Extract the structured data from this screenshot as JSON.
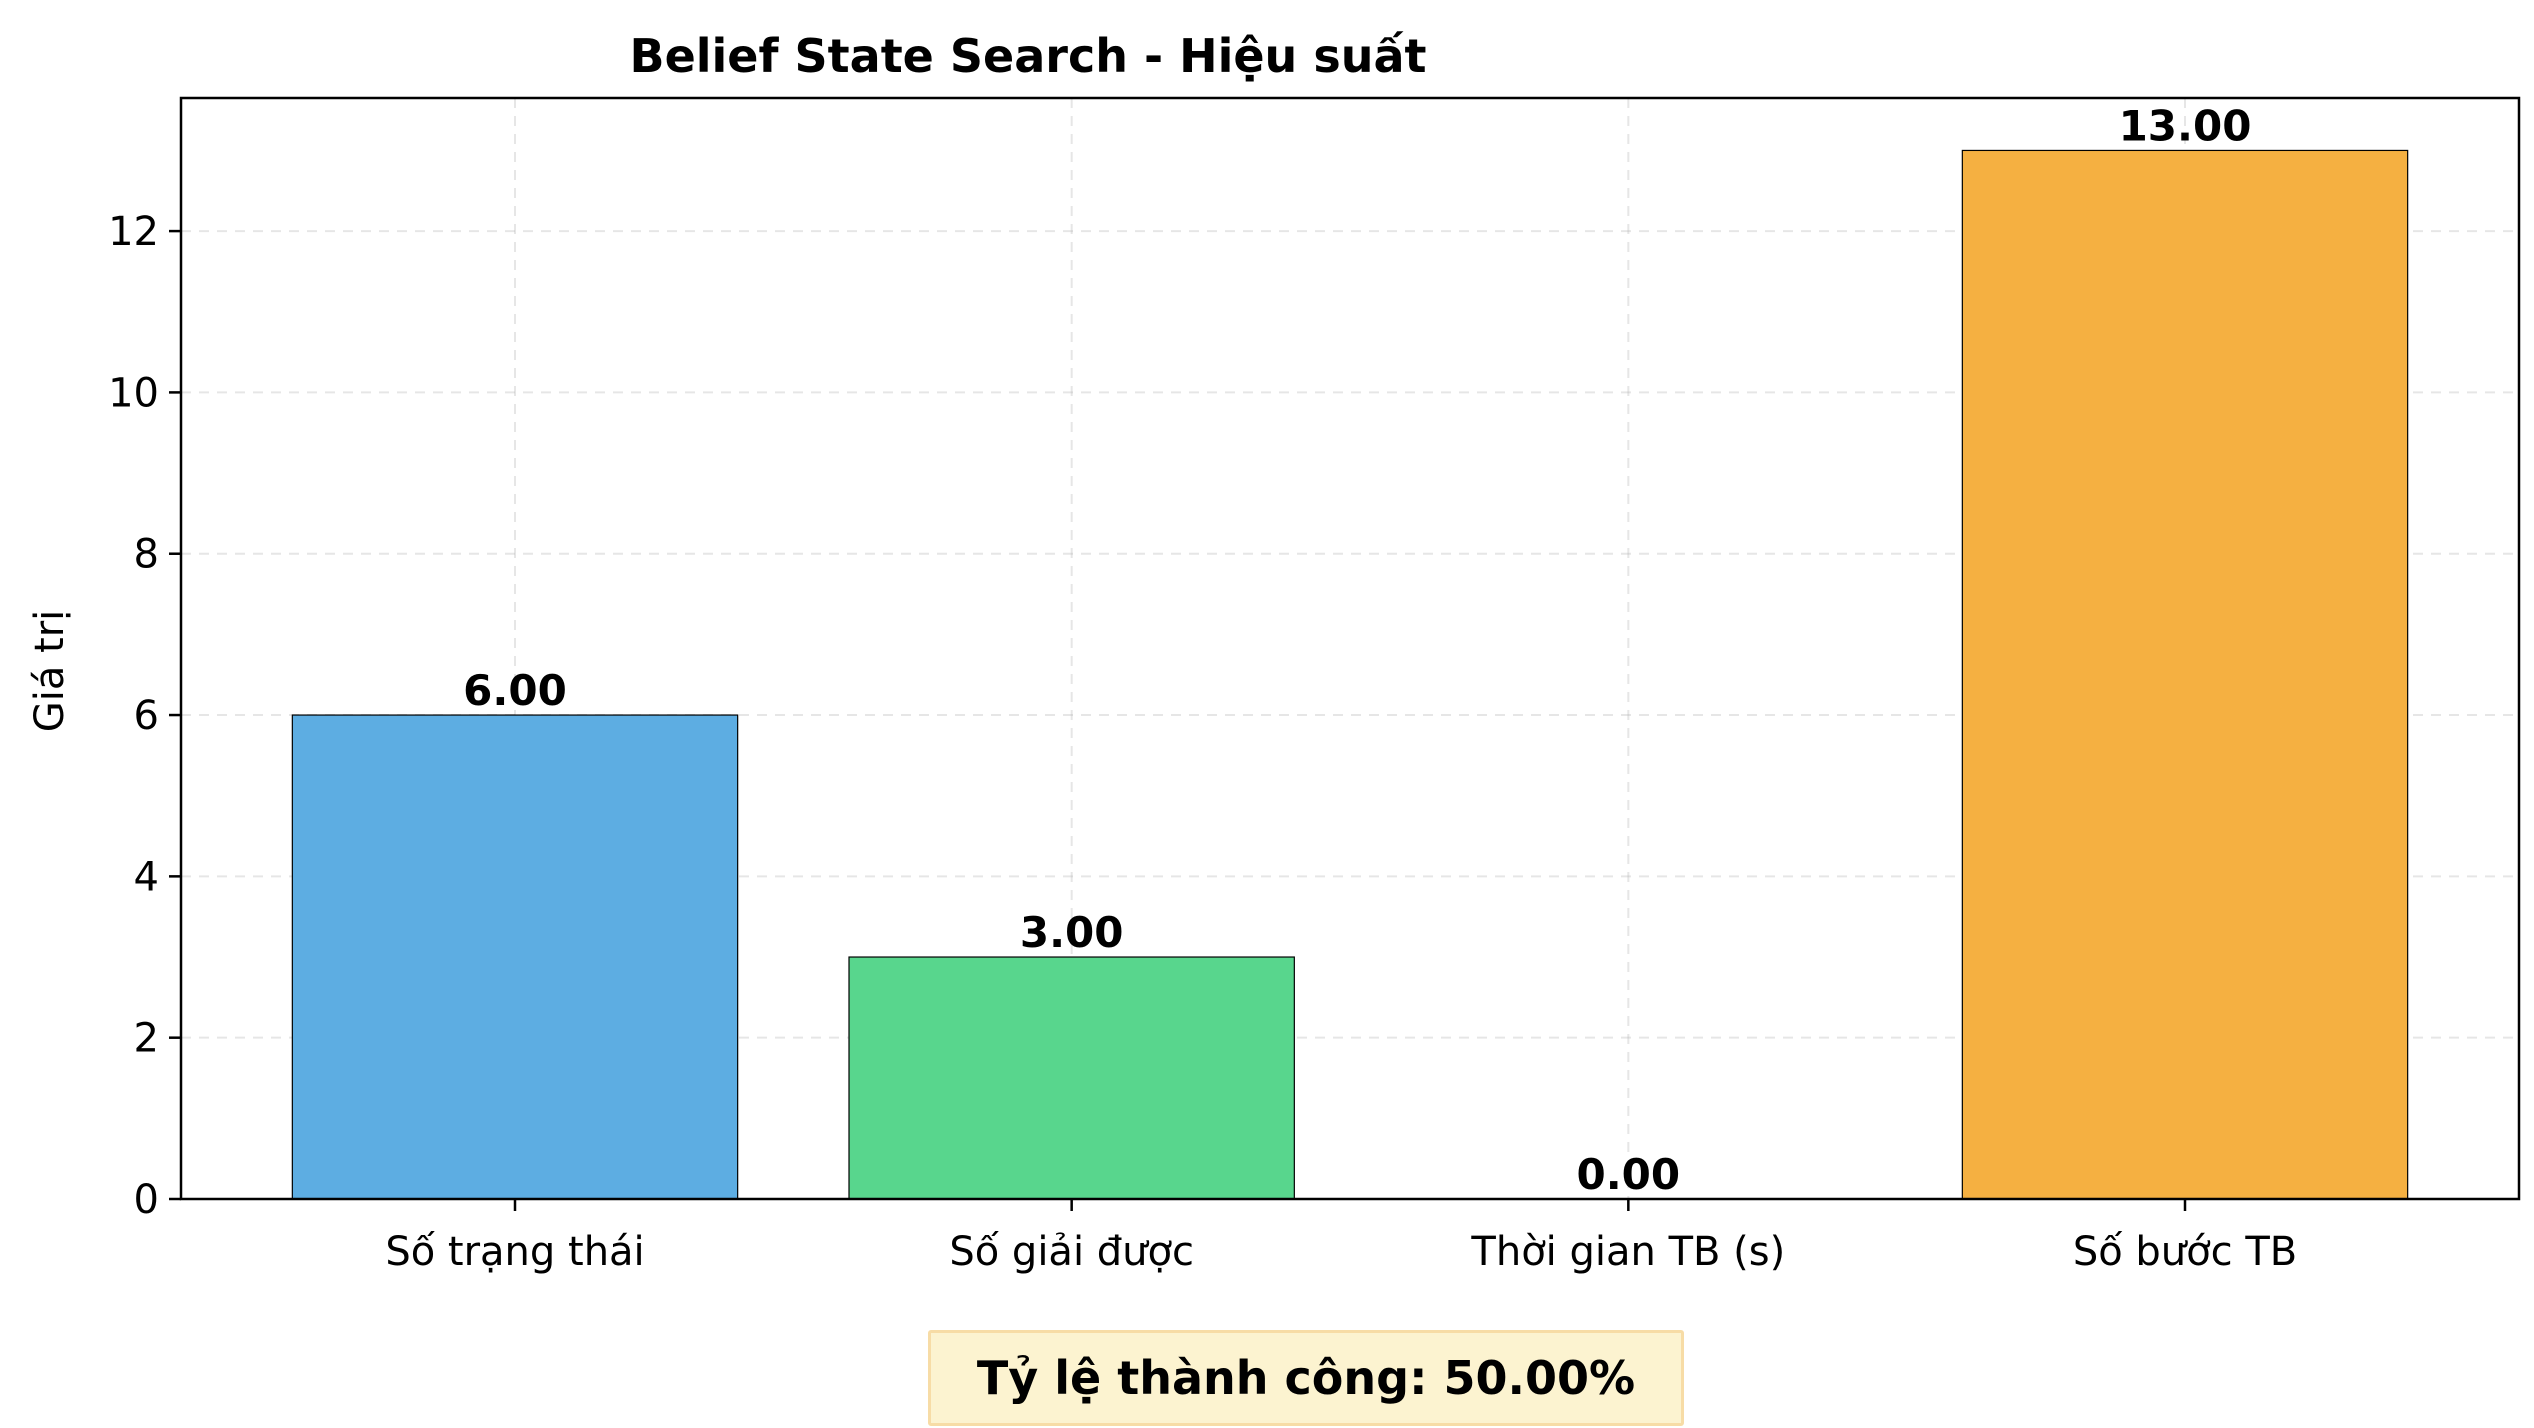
{
  "chart_data": {
    "type": "bar",
    "title": "Belief State Search - Hiệu suất",
    "xlabel": "",
    "ylabel": "Giá trị",
    "categories": [
      "Số trạng thái",
      "Số giải được",
      "Thời gian TB (s)",
      "Số bước TB"
    ],
    "values": [
      6.0,
      3.0,
      0.0,
      13.0
    ],
    "value_labels": [
      "6.00",
      "3.00",
      "0.00",
      "13.00"
    ],
    "colors": [
      "#5dade2",
      "#58d68d",
      "#e74c3c",
      "#f5b041"
    ],
    "ylim": [
      0,
      13.65
    ],
    "yticks": [
      0,
      2,
      4,
      6,
      8,
      10,
      12
    ],
    "grid": true,
    "legend": "none"
  },
  "success_box": {
    "text": "Tỷ lệ thành công: 50.00%"
  }
}
